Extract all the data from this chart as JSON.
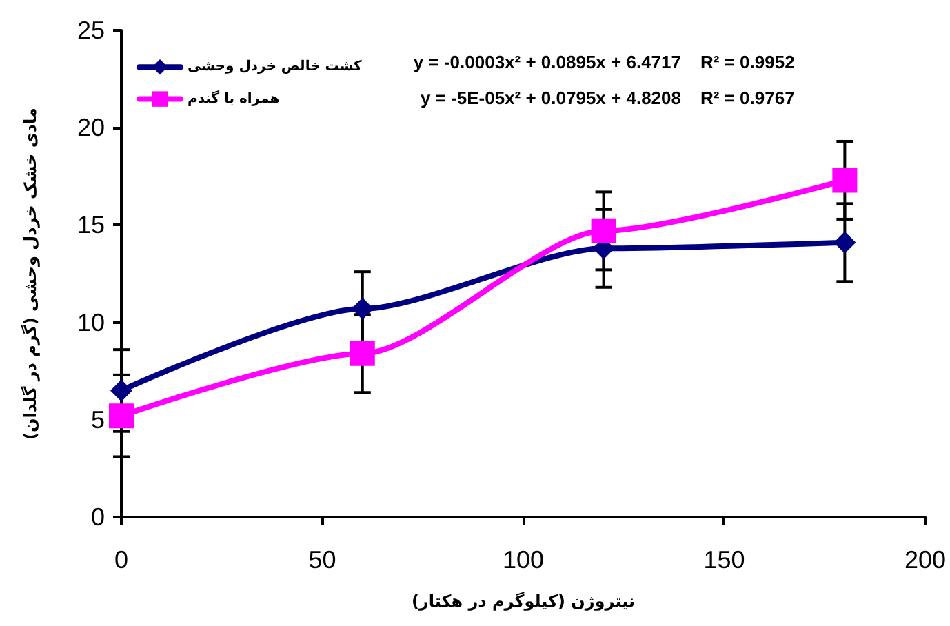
{
  "chart_data": {
    "type": "line",
    "xlabel": "نیتروژن (کیلوگرم در هکتار)",
    "ylabel": "مادی خشک خردل وحشی (گرم در گلدان)",
    "x": [
      0,
      60,
      120,
      180
    ],
    "series": [
      {
        "name": "کشت خالص خردل وحشی",
        "color": "#000080",
        "marker": "diamond",
        "values": [
          6.5,
          10.7,
          13.8,
          14.1
        ],
        "errors": [
          2.1,
          1.9,
          2.0,
          2.0
        ]
      },
      {
        "name": "همراه با گندم",
        "color": "#ff00ff",
        "marker": "square",
        "values": [
          5.2,
          8.4,
          14.7,
          17.3
        ],
        "errors": [
          2.1,
          2.0,
          2.0,
          2.0
        ]
      }
    ],
    "annotations": [
      "y = -0.0003x² + 0.0895x + 6.4717",
      "R² = 0.9952",
      "y = -5E-05x² + 0.0795x + 4.8208",
      "R² = 0.9767"
    ],
    "xlim": [
      0,
      200
    ],
    "xticks": [
      0,
      50,
      100,
      150,
      200
    ],
    "ylim": [
      0,
      25
    ],
    "yticks": [
      0,
      5,
      10,
      15,
      20,
      25
    ],
    "grid": false,
    "legend": "top left",
    "line_style": "solid"
  }
}
